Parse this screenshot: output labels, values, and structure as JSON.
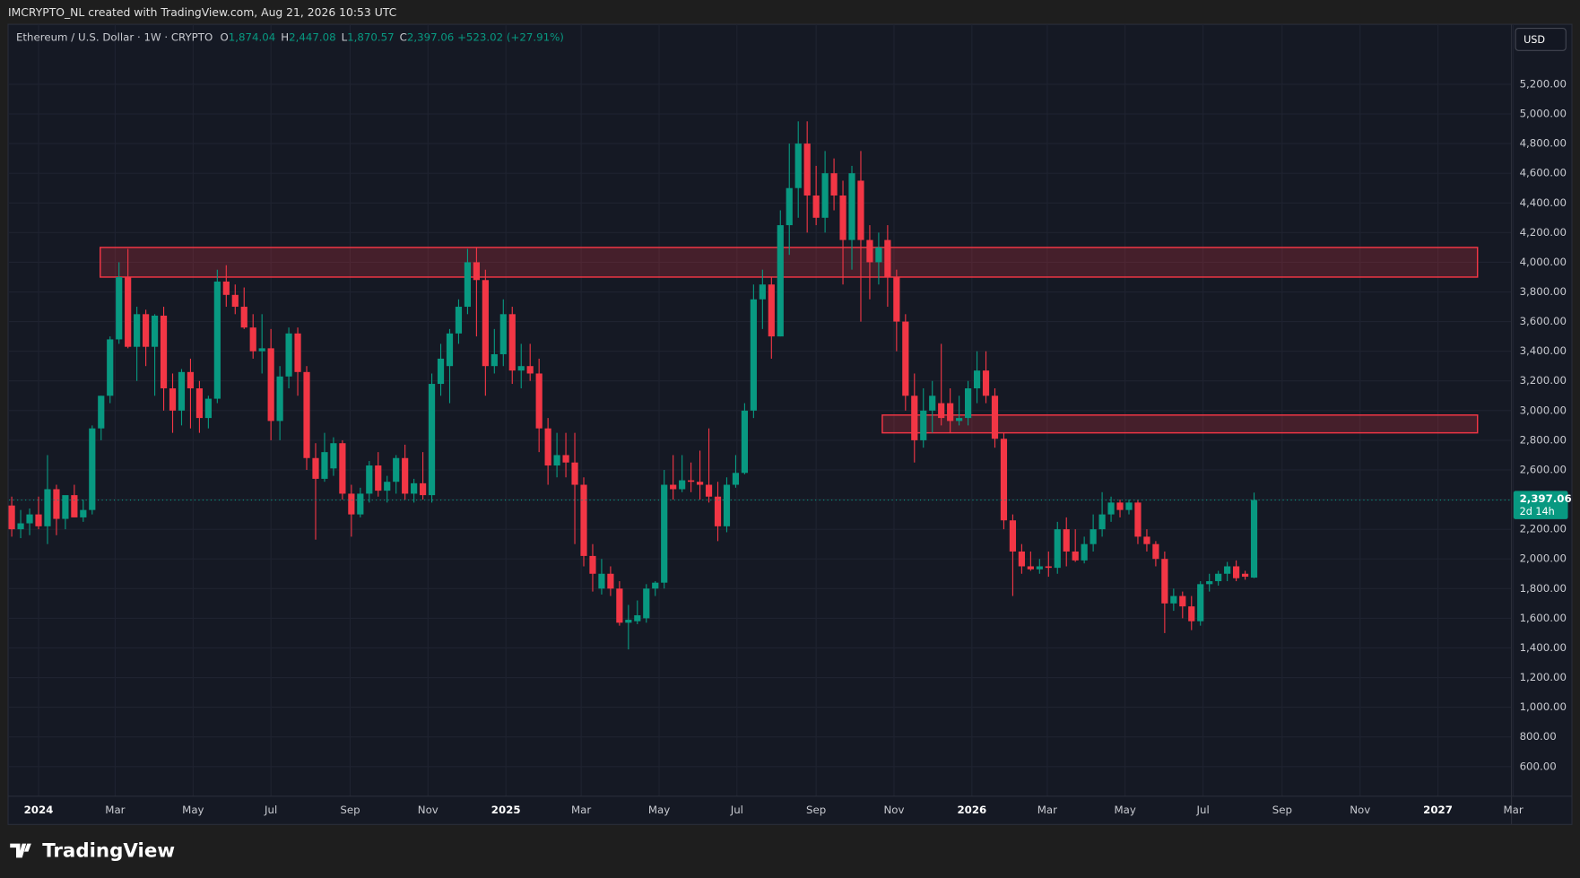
{
  "header": {
    "credit": "IMCRYPTO_NL created with TradingView.com, Aug 21, 2026 10:53 UTC",
    "currency_button": "USD",
    "logo": "TradingView"
  },
  "chart_data": {
    "type": "candlestick",
    "title": "Ethereum / U.S. Dollar · 1W · CRYPTO",
    "ohlc_legend": {
      "o_key": "O",
      "o": "1,874.04",
      "h_key": "H",
      "h": "2,447.08",
      "l_key": "L",
      "l": "1,870.57",
      "c_key": "C",
      "c": "2,397.06",
      "change": "+523.02 (+27.91%)"
    },
    "last_price_label": "2,397.06",
    "countdown": "2d 14h",
    "up_color": "#089981",
    "down_color": "#f23645",
    "grid": true,
    "xlim": [
      -3.3,
      164.8
    ],
    "ylim": [
      400,
      5380
    ],
    "x": [
      -3,
      -2,
      -1,
      0,
      1,
      2,
      3,
      4,
      5,
      6,
      7,
      8,
      9,
      10,
      11,
      12,
      13,
      14,
      15,
      16,
      17,
      18,
      19,
      20,
      21,
      22,
      23,
      24,
      25,
      26,
      27,
      28,
      29,
      30,
      31,
      32,
      33,
      34,
      35,
      36,
      37,
      38,
      39,
      40,
      41,
      42,
      43,
      44,
      45,
      46,
      47,
      48,
      49,
      50,
      51,
      52,
      53,
      54,
      55,
      56,
      57,
      58,
      59,
      60,
      61,
      62,
      63,
      64,
      65,
      66,
      67,
      68,
      69,
      70,
      71,
      72,
      73,
      74,
      75,
      76,
      77,
      78,
      79,
      80,
      81,
      82,
      83,
      84,
      85,
      86,
      87,
      88,
      89,
      90,
      91,
      92,
      93,
      94,
      95,
      96,
      97,
      98,
      99,
      100,
      101,
      102,
      103,
      104,
      105,
      106,
      107,
      108,
      109,
      110,
      111,
      112,
      113,
      114,
      115,
      116,
      117,
      118,
      119,
      120,
      121,
      122,
      123,
      124,
      125,
      126,
      127,
      128,
      129,
      130,
      131,
      132,
      133,
      134,
      135,
      136
    ],
    "candles": [
      [
        2360,
        2420,
        2150,
        2200
      ],
      [
        2200,
        2330,
        2140,
        2240
      ],
      [
        2240,
        2340,
        2160,
        2300
      ],
      [
        2300,
        2420,
        2200,
        2220
      ],
      [
        2220,
        2700,
        2100,
        2470
      ],
      [
        2470,
        2500,
        2160,
        2270
      ],
      [
        2270,
        2400,
        2200,
        2430
      ],
      [
        2430,
        2500,
        2280,
        2280
      ],
      [
        2280,
        2400,
        2250,
        2330
      ],
      [
        2330,
        2900,
        2300,
        2880
      ],
      [
        2880,
        3100,
        2800,
        3100
      ],
      [
        3100,
        3500,
        3050,
        3480
      ],
      [
        3480,
        4000,
        3450,
        3900
      ],
      [
        3900,
        4090,
        3420,
        3430
      ],
      [
        3430,
        3700,
        3200,
        3650
      ],
      [
        3650,
        3680,
        3300,
        3430
      ],
      [
        3430,
        3650,
        3100,
        3640
      ],
      [
        3640,
        3700,
        3000,
        3150
      ],
      [
        3150,
        3250,
        2850,
        3000
      ],
      [
        3000,
        3280,
        2900,
        3260
      ],
      [
        3260,
        3350,
        2880,
        3150
      ],
      [
        3150,
        3200,
        2850,
        2950
      ],
      [
        2950,
        3100,
        2880,
        3080
      ],
      [
        3080,
        3950,
        3050,
        3870
      ],
      [
        3870,
        3980,
        3700,
        3780
      ],
      [
        3780,
        3850,
        3650,
        3700
      ],
      [
        3700,
        3830,
        3550,
        3560
      ],
      [
        3560,
        3650,
        3350,
        3400
      ],
      [
        3400,
        3650,
        3250,
        3420
      ],
      [
        3420,
        3550,
        2800,
        2930
      ],
      [
        2930,
        3300,
        2800,
        3230
      ],
      [
        3230,
        3560,
        3150,
        3520
      ],
      [
        3520,
        3560,
        3100,
        3260
      ],
      [
        3260,
        3300,
        2600,
        2680
      ],
      [
        2680,
        2780,
        2130,
        2540
      ],
      [
        2540,
        2850,
        2520,
        2720
      ],
      [
        2610,
        2820,
        2560,
        2780
      ],
      [
        2780,
        2800,
        2400,
        2440
      ],
      [
        2440,
        2500,
        2150,
        2300
      ],
      [
        2300,
        2480,
        2280,
        2440
      ],
      [
        2440,
        2660,
        2380,
        2630
      ],
      [
        2630,
        2720,
        2420,
        2460
      ],
      [
        2460,
        2560,
        2380,
        2520
      ],
      [
        2520,
        2700,
        2440,
        2680
      ],
      [
        2680,
        2770,
        2400,
        2440
      ],
      [
        2440,
        2540,
        2380,
        2510
      ],
      [
        2510,
        2720,
        2400,
        2430
      ],
      [
        2430,
        3250,
        2380,
        3180
      ],
      [
        3180,
        3450,
        3100,
        3350
      ],
      [
        3300,
        3550,
        3050,
        3520
      ],
      [
        3520,
        3750,
        3450,
        3700
      ],
      [
        3700,
        4090,
        3650,
        4000
      ],
      [
        4000,
        4100,
        3500,
        3880
      ],
      [
        3880,
        3950,
        3100,
        3300
      ],
      [
        3300,
        3550,
        3250,
        3380
      ],
      [
        3380,
        3750,
        3300,
        3650
      ],
      [
        3650,
        3700,
        3180,
        3270
      ],
      [
        3270,
        3450,
        3150,
        3300
      ],
      [
        3300,
        3450,
        3200,
        3250
      ],
      [
        3250,
        3350,
        2720,
        2880
      ],
      [
        2880,
        2950,
        2500,
        2630
      ],
      [
        2630,
        2850,
        2550,
        2700
      ],
      [
        2700,
        2850,
        2550,
        2650
      ],
      [
        2650,
        2850,
        2100,
        2500
      ],
      [
        2500,
        2550,
        1950,
        2020
      ],
      [
        2020,
        2100,
        1780,
        1900
      ],
      [
        1800,
        2000,
        1760,
        1900
      ],
      [
        1900,
        1950,
        1750,
        1800
      ],
      [
        1800,
        1850,
        1550,
        1570
      ],
      [
        1570,
        1690,
        1390,
        1590
      ],
      [
        1580,
        1720,
        1560,
        1620
      ],
      [
        1600,
        1830,
        1570,
        1800
      ],
      [
        1800,
        1850,
        1750,
        1840
      ],
      [
        1840,
        2600,
        1800,
        2500
      ],
      [
        2500,
        2700,
        2400,
        2470
      ],
      [
        2470,
        2700,
        2450,
        2530
      ],
      [
        2530,
        2650,
        2450,
        2520
      ],
      [
        2520,
        2730,
        2400,
        2500
      ],
      [
        2500,
        2880,
        2380,
        2420
      ],
      [
        2420,
        2520,
        2120,
        2220
      ],
      [
        2220,
        2550,
        2180,
        2500
      ],
      [
        2500,
        2700,
        2480,
        2580
      ],
      [
        2580,
        3050,
        2570,
        3000
      ],
      [
        3000,
        3850,
        2950,
        3750
      ],
      [
        3750,
        3950,
        3550,
        3850
      ],
      [
        3850,
        3900,
        3350,
        3500
      ],
      [
        3500,
        4350,
        3500,
        4250
      ],
      [
        4250,
        4800,
        4050,
        4500
      ],
      [
        4500,
        4950,
        4300,
        4800
      ],
      [
        4800,
        4950,
        4200,
        4450
      ],
      [
        4450,
        4650,
        4250,
        4300
      ],
      [
        4300,
        4750,
        4200,
        4600
      ],
      [
        4600,
        4700,
        4350,
        4450
      ],
      [
        4450,
        4550,
        3850,
        4150
      ],
      [
        4150,
        4650,
        3950,
        4600
      ],
      [
        4550,
        4750,
        3600,
        4150
      ],
      [
        4150,
        4250,
        3750,
        4000
      ],
      [
        4000,
        4200,
        3850,
        4100
      ],
      [
        4150,
        4250,
        3700,
        3900
      ],
      [
        3900,
        3950,
        3400,
        3600
      ],
      [
        3600,
        3650,
        3000,
        3100
      ],
      [
        3100,
        3250,
        2650,
        2800
      ],
      [
        2800,
        3150,
        2750,
        3000
      ],
      [
        3000,
        3200,
        2850,
        3100
      ],
      [
        3050,
        3450,
        2900,
        2950
      ],
      [
        3050,
        3150,
        2850,
        2930
      ],
      [
        2930,
        3100,
        2900,
        2950
      ],
      [
        2950,
        3200,
        2900,
        3150
      ],
      [
        3150,
        3400,
        3050,
        3270
      ],
      [
        3270,
        3400,
        3050,
        3100
      ],
      [
        3100,
        3150,
        2750,
        2810
      ],
      [
        2810,
        2850,
        2200,
        2260
      ],
      [
        2260,
        2300,
        1750,
        2050
      ],
      [
        2050,
        2100,
        1900,
        1950
      ],
      [
        1950,
        2050,
        1920,
        1930
      ],
      [
        1930,
        2000,
        1900,
        1950
      ],
      [
        1950,
        2050,
        1880,
        1940
      ],
      [
        1940,
        2250,
        1900,
        2200
      ],
      [
        2200,
        2280,
        1950,
        2050
      ],
      [
        2050,
        2200,
        1980,
        1990
      ],
      [
        1990,
        2150,
        1970,
        2100
      ],
      [
        2100,
        2300,
        2050,
        2200
      ],
      [
        2200,
        2450,
        2150,
        2300
      ],
      [
        2300,
        2420,
        2250,
        2380
      ],
      [
        2380,
        2400,
        2280,
        2330
      ],
      [
        2330,
        2400,
        2300,
        2380
      ],
      [
        2380,
        2400,
        2100,
        2150
      ],
      [
        2150,
        2200,
        2050,
        2100
      ],
      [
        2100,
        2120,
        1950,
        2000
      ],
      [
        2000,
        2050,
        1500,
        1700
      ],
      [
        1700,
        1800,
        1650,
        1750
      ],
      [
        1750,
        1780,
        1600,
        1680
      ],
      [
        1680,
        1750,
        1520,
        1580
      ],
      [
        1580,
        1850,
        1550,
        1830
      ],
      [
        1830,
        1900,
        1780,
        1850
      ],
      [
        1850,
        1920,
        1820,
        1900
      ],
      [
        1900,
        1980,
        1850,
        1950
      ],
      [
        1950,
        1990,
        1850,
        1870
      ],
      [
        1900,
        1920,
        1860,
        1880
      ],
      [
        1874.04,
        2447.08,
        1870.57,
        2397.06
      ]
    ],
    "zones": [
      {
        "xlim": [
          6.9,
          161
        ],
        "ylim": [
          3900,
          4100
        ]
      },
      {
        "xlim": [
          94.4,
          161
        ],
        "ylim": [
          2850,
          2970
        ]
      }
    ],
    "yticks": [
      {
        "value": 600,
        "label": "600.00"
      },
      {
        "value": 800,
        "label": "800.00"
      },
      {
        "value": 1000,
        "label": "1,000.00"
      },
      {
        "value": 1200,
        "label": "1,200.00"
      },
      {
        "value": 1400,
        "label": "1,400.00"
      },
      {
        "value": 1600,
        "label": "1,600.00"
      },
      {
        "value": 1800,
        "label": "1,800.00"
      },
      {
        "value": 2000,
        "label": "2,000.00"
      },
      {
        "value": 2200,
        "label": "2,200.00"
      },
      {
        "value": 2400,
        "label": "2,400.00"
      },
      {
        "value": 2600,
        "label": "2,600.00"
      },
      {
        "value": 2800,
        "label": "2,800.00"
      },
      {
        "value": 3000,
        "label": "3,000.00"
      },
      {
        "value": 3200,
        "label": "3,200.00"
      },
      {
        "value": 3400,
        "label": "3,400.00"
      },
      {
        "value": 3600,
        "label": "3,600.00"
      },
      {
        "value": 3800,
        "label": "3,800.00"
      },
      {
        "value": 4000,
        "label": "4,000.00"
      },
      {
        "value": 4200,
        "label": "4,200.00"
      },
      {
        "value": 4400,
        "label": "4,400.00"
      },
      {
        "value": 4600,
        "label": "4,600.00"
      },
      {
        "value": 4800,
        "label": "4,800.00"
      },
      {
        "value": 5000,
        "label": "5,000.00"
      },
      {
        "value": 5200,
        "label": "5,200.00"
      }
    ],
    "xticks": [
      {
        "value": 0,
        "label": "2024"
      },
      {
        "value": 8.57,
        "label": "Mar"
      },
      {
        "value": 17.29,
        "label": "May"
      },
      {
        "value": 26,
        "label": "Jul"
      },
      {
        "value": 34.86,
        "label": "Sep"
      },
      {
        "value": 43.57,
        "label": "Nov"
      },
      {
        "value": 52.29,
        "label": "2025"
      },
      {
        "value": 60.71,
        "label": "Mar"
      },
      {
        "value": 69.43,
        "label": "May"
      },
      {
        "value": 78.14,
        "label": "Jul"
      },
      {
        "value": 87,
        "label": "Sep"
      },
      {
        "value": 95.71,
        "label": "Nov"
      },
      {
        "value": 104.43,
        "label": "2026"
      },
      {
        "value": 112.86,
        "label": "Mar"
      },
      {
        "value": 121.57,
        "label": "May"
      },
      {
        "value": 130.29,
        "label": "Jul"
      },
      {
        "value": 139.14,
        "label": "Sep"
      },
      {
        "value": 147.86,
        "label": "Nov"
      },
      {
        "value": 156.57,
        "label": "2027"
      },
      {
        "value": 165,
        "label": "Mar"
      }
    ]
  }
}
